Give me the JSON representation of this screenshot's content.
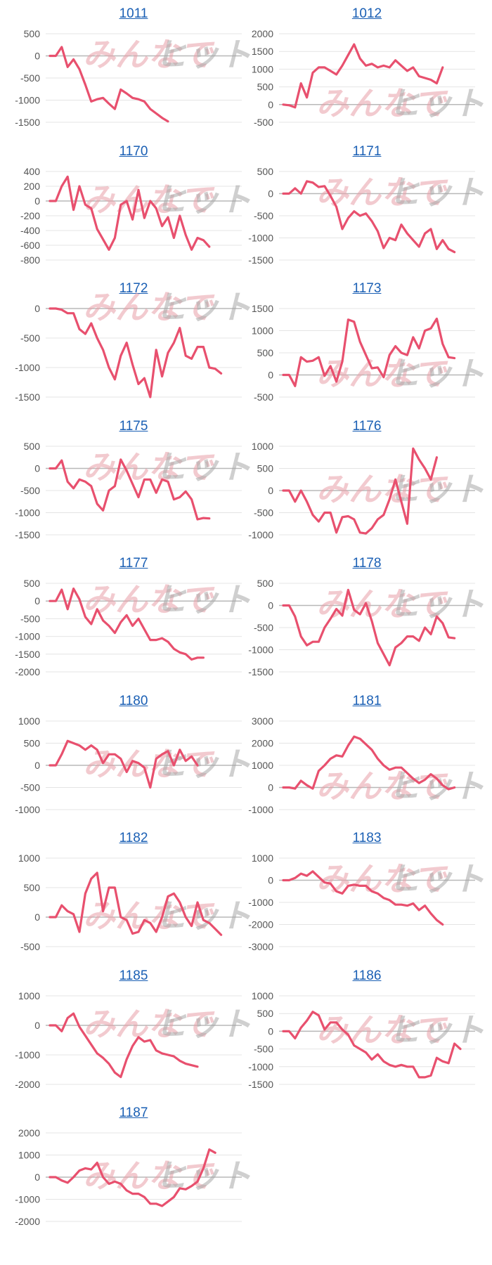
{
  "series_color": "#e8506e",
  "watermark": {
    "left": "みんなで",
    "right": "ヒット"
  },
  "chart_data": [
    {
      "type": "line",
      "title": "1011",
      "ylim": [
        -1500,
        500
      ],
      "yticks": [
        500,
        0,
        -500,
        -1000,
        -1500
      ],
      "values": [
        0,
        0,
        200,
        -250,
        -80,
        -300,
        -650,
        -1030,
        -980,
        -950,
        -1080,
        -1200,
        -760,
        -850,
        -950,
        -980,
        -1030,
        -1200,
        -1300,
        -1400,
        -1480
      ]
    },
    {
      "type": "line",
      "title": "1012",
      "ylim": [
        -500,
        2000
      ],
      "yticks": [
        2000,
        1500,
        1000,
        500,
        0,
        -500
      ],
      "values": [
        0,
        -20,
        -80,
        600,
        200,
        900,
        1050,
        1050,
        950,
        850,
        1100,
        1400,
        1700,
        1300,
        1100,
        1150,
        1050,
        1100,
        1050,
        1250,
        1100,
        950,
        1050,
        800,
        750,
        700,
        600,
        1050
      ]
    },
    {
      "type": "line",
      "title": "1170",
      "ylim": [
        -800,
        400
      ],
      "yticks": [
        400,
        200,
        0,
        -200,
        -400,
        -600,
        -800
      ],
      "values": [
        0,
        0,
        200,
        330,
        -120,
        200,
        -50,
        -100,
        -380,
        -520,
        -660,
        -500,
        -50,
        0,
        -250,
        150,
        -230,
        0,
        -100,
        -340,
        -220,
        -500,
        -200,
        -460,
        -660,
        -500,
        -530,
        -620
      ]
    },
    {
      "type": "line",
      "title": "1171",
      "ylim": [
        -1500,
        500
      ],
      "yticks": [
        500,
        0,
        -500,
        -1000,
        -1500
      ],
      "values": [
        0,
        0,
        120,
        0,
        280,
        250,
        150,
        170,
        -50,
        -300,
        -800,
        -550,
        -400,
        -500,
        -450,
        -620,
        -850,
        -1230,
        -1000,
        -1050,
        -700,
        -900,
        -1050,
        -1200,
        -900,
        -800,
        -1250,
        -1050,
        -1250,
        -1320
      ]
    },
    {
      "type": "line",
      "title": "1172",
      "ylim": [
        -1500,
        0
      ],
      "yticks": [
        0,
        -500,
        -1000,
        -1500
      ],
      "values": [
        0,
        0,
        -20,
        -80,
        -80,
        -350,
        -430,
        -250,
        -500,
        -700,
        -1000,
        -1200,
        -800,
        -580,
        -950,
        -1280,
        -1180,
        -1500,
        -700,
        -1150,
        -750,
        -580,
        -330,
        -800,
        -850,
        -650,
        -650,
        -1000,
        -1020,
        -1100
      ]
    },
    {
      "type": "line",
      "title": "1173",
      "ylim": [
        -500,
        1500
      ],
      "yticks": [
        1500,
        1000,
        500,
        0,
        -500
      ],
      "values": [
        0,
        0,
        -250,
        400,
        300,
        320,
        400,
        -20,
        200,
        -150,
        300,
        1250,
        1200,
        750,
        450,
        150,
        170,
        -50,
        450,
        650,
        500,
        450,
        850,
        600,
        1000,
        1050,
        1270,
        700,
        400,
        380
      ]
    },
    {
      "type": "line",
      "title": "1175",
      "ylim": [
        -1500,
        500
      ],
      "yticks": [
        500,
        0,
        -500,
        -1000,
        -1500
      ],
      "values": [
        0,
        0,
        180,
        -300,
        -450,
        -250,
        -300,
        -400,
        -800,
        -950,
        -500,
        -400,
        200,
        -50,
        -350,
        -650,
        -250,
        -250,
        -550,
        -250,
        -300,
        -700,
        -650,
        -520,
        -700,
        -1150,
        -1120,
        -1130
      ]
    },
    {
      "type": "line",
      "title": "1176",
      "ylim": [
        -1000,
        1000
      ],
      "yticks": [
        1000,
        500,
        0,
        -500,
        -1000
      ],
      "values": [
        0,
        0,
        -250,
        0,
        -250,
        -550,
        -700,
        -500,
        -500,
        -950,
        -600,
        -580,
        -650,
        -950,
        -970,
        -850,
        -650,
        -550,
        -200,
        250,
        -250,
        -750,
        950,
        700,
        500,
        250,
        750
      ]
    },
    {
      "type": "line",
      "title": "1177",
      "ylim": [
        -2000,
        500
      ],
      "yticks": [
        500,
        0,
        -500,
        -1000,
        -1500,
        -2000
      ],
      "values": [
        0,
        0,
        320,
        -230,
        350,
        50,
        -450,
        -650,
        -230,
        -550,
        -700,
        -900,
        -600,
        -400,
        -700,
        -500,
        -800,
        -1100,
        -1100,
        -1050,
        -1150,
        -1350,
        -1450,
        -1500,
        -1650,
        -1600,
        -1600
      ]
    },
    {
      "type": "line",
      "title": "1178",
      "ylim": [
        -1500,
        500
      ],
      "yticks": [
        500,
        0,
        -500,
        -1000,
        -1500
      ],
      "values": [
        0,
        0,
        -250,
        -700,
        -900,
        -820,
        -820,
        -500,
        -300,
        -80,
        -230,
        350,
        -100,
        -200,
        50,
        -350,
        -850,
        -1100,
        -1350,
        -950,
        -850,
        -700,
        -700,
        -800,
        -500,
        -650,
        -250,
        -400,
        -720,
        -740
      ]
    },
    {
      "type": "line",
      "title": "1180",
      "ylim": [
        -1000,
        1000
      ],
      "yticks": [
        1000,
        500,
        0,
        -500,
        -1000
      ],
      "values": [
        0,
        0,
        250,
        550,
        500,
        450,
        350,
        450,
        350,
        50,
        250,
        250,
        150,
        -150,
        100,
        50,
        -50,
        -500,
        150,
        250,
        320,
        0,
        350,
        100,
        200,
        0
      ]
    },
    {
      "type": "line",
      "title": "1181",
      "ylim": [
        -1000,
        3000
      ],
      "yticks": [
        3000,
        2000,
        1000,
        0,
        -1000
      ],
      "values": [
        0,
        0,
        -50,
        300,
        100,
        -50,
        750,
        1000,
        1300,
        1450,
        1400,
        1900,
        2300,
        2200,
        1950,
        1700,
        1300,
        1000,
        800,
        900,
        900,
        650,
        400,
        200,
        350,
        600,
        400,
        100,
        -80,
        0
      ]
    },
    {
      "type": "line",
      "title": "1182",
      "ylim": [
        -500,
        1000
      ],
      "yticks": [
        1000,
        500,
        0,
        -500
      ],
      "values": [
        0,
        0,
        200,
        100,
        50,
        -250,
        400,
        650,
        750,
        100,
        500,
        500,
        0,
        -50,
        -280,
        -250,
        -50,
        -100,
        -250,
        0,
        350,
        400,
        250,
        0,
        -150,
        250,
        -50,
        -100,
        -200,
        -300
      ]
    },
    {
      "type": "line",
      "title": "1183",
      "ylim": [
        -3000,
        1000
      ],
      "yticks": [
        1000,
        0,
        -1000,
        -2000,
        -3000
      ],
      "values": [
        0,
        0,
        100,
        300,
        200,
        400,
        150,
        -100,
        -150,
        -500,
        -600,
        -250,
        -200,
        -250,
        -250,
        -500,
        -600,
        -800,
        -900,
        -1100,
        -1100,
        -1150,
        -1050,
        -1350,
        -1150,
        -1500,
        -1800,
        -2000
      ]
    },
    {
      "type": "line",
      "title": "1185",
      "ylim": [
        -2000,
        1000
      ],
      "yticks": [
        1000,
        0,
        -1000,
        -2000
      ],
      "values": [
        0,
        0,
        -200,
        250,
        400,
        -50,
        -350,
        -650,
        -950,
        -1100,
        -1300,
        -1600,
        -1750,
        -1150,
        -700,
        -400,
        -550,
        -500,
        -850,
        -950,
        -1000,
        -1050,
        -1200,
        -1300,
        -1350,
        -1400
      ]
    },
    {
      "type": "line",
      "title": "1186",
      "ylim": [
        -1500,
        1000
      ],
      "yticks": [
        1000,
        500,
        0,
        -500,
        -1000,
        -1500
      ],
      "values": [
        0,
        0,
        -200,
        100,
        300,
        550,
        450,
        50,
        250,
        250,
        50,
        -100,
        -400,
        -500,
        -600,
        -800,
        -650,
        -850,
        -950,
        -1000,
        -950,
        -1000,
        -1000,
        -1300,
        -1300,
        -1250,
        -750,
        -850,
        -900,
        -350,
        -500
      ]
    },
    {
      "type": "line",
      "title": "1187",
      "ylim": [
        -2000,
        2000
      ],
      "yticks": [
        2000,
        1000,
        0,
        -1000,
        -2000
      ],
      "values": [
        0,
        0,
        -150,
        -250,
        0,
        300,
        400,
        350,
        650,
        0,
        -300,
        -200,
        -300,
        -600,
        -750,
        -750,
        -900,
        -1200,
        -1200,
        -1300,
        -1100,
        -900,
        -500,
        -550,
        -400,
        -200,
        400,
        1250,
        1100
      ]
    }
  ]
}
